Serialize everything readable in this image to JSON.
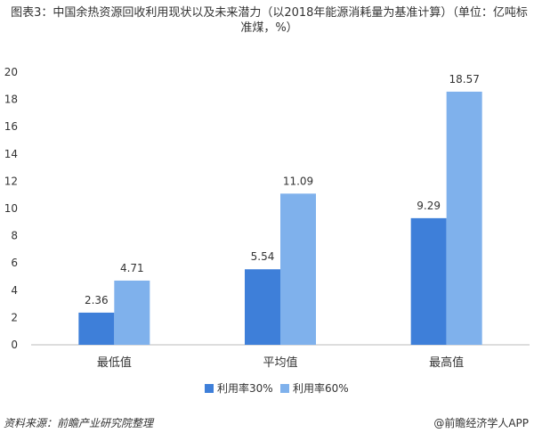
{
  "chart_data": {
    "type": "bar",
    "title": "图表3：中国余热资源回收利用现状以及未来潜力（以2018年能源消耗量为基准计算）（单位：亿吨标准煤，%）",
    "categories": [
      "最低值",
      "平均值",
      "最高值"
    ],
    "series": [
      {
        "name": "利用率30%",
        "color": "#3e7fd9",
        "values": [
          2.36,
          5.54,
          9.29
        ]
      },
      {
        "name": "利用率60%",
        "color": "#7fb1ec",
        "values": [
          4.71,
          11.09,
          18.57
        ]
      }
    ],
    "ylim": [
      0,
      20
    ],
    "yticks": [
      0,
      2,
      4,
      6,
      8,
      10,
      12,
      14,
      16,
      18,
      20
    ],
    "grid": false,
    "source": "资料来源：前瞻产业研究院整理",
    "brand": "@前瞻经济学人APP"
  }
}
